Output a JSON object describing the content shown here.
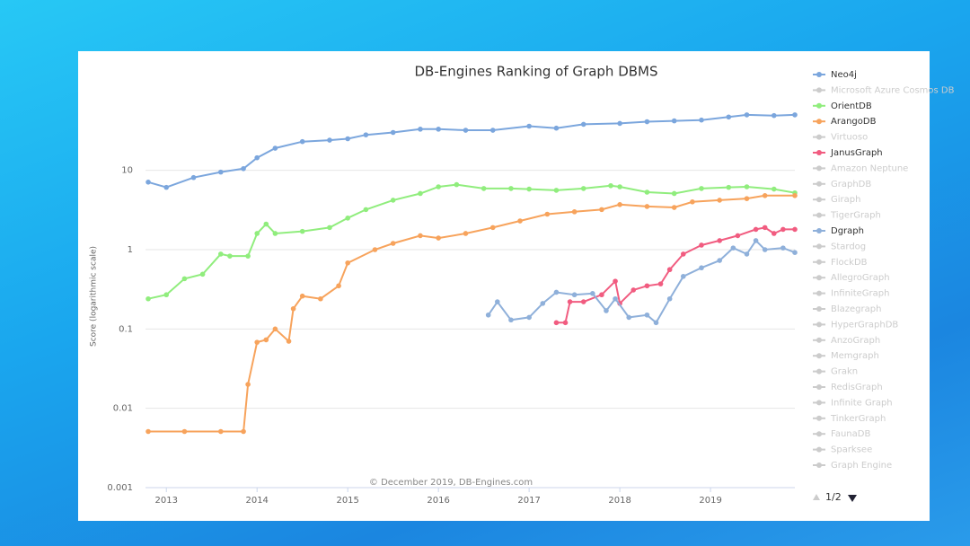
{
  "chart_data": {
    "type": "line",
    "title": "DB-Engines Ranking of Graph DBMS",
    "y_label": "Score (logarithmic scale)",
    "credits": "© December 2019, DB-Engines.com",
    "ylog": true,
    "ylim": [
      0.001,
      70
    ],
    "yticks": [
      0.001,
      0.01,
      0.1,
      1,
      10
    ],
    "xlim": [
      2012.77,
      2019.93
    ],
    "xticks": [
      2013,
      2014,
      2015,
      2016,
      2017,
      2018,
      2019
    ],
    "grid": true,
    "legend_position": "right",
    "legend_page": "1/2",
    "series": [
      {
        "name": "Neo4j",
        "color": "#7ba6dd",
        "x": [
          2012.8,
          2013.0,
          2013.3,
          2013.6,
          2013.85,
          2014.0,
          2014.2,
          2014.5,
          2014.8,
          2015.0,
          2015.2,
          2015.5,
          2015.8,
          2016.0,
          2016.3,
          2016.6,
          2017.0,
          2017.3,
          2017.6,
          2018.0,
          2018.3,
          2018.6,
          2018.9,
          2019.2,
          2019.4,
          2019.7,
          2019.93
        ],
        "values": [
          7.1,
          6.1,
          8.1,
          9.5,
          10.5,
          14.4,
          19,
          23,
          24,
          25,
          28,
          30,
          33,
          33,
          32,
          32,
          36,
          34,
          38,
          39,
          41,
          42,
          43,
          47,
          50,
          49,
          50
        ]
      },
      {
        "name": "OrientDB",
        "color": "#90ed7d",
        "x": [
          2012.8,
          2013.0,
          2013.2,
          2013.4,
          2013.6,
          2013.7,
          2013.9,
          2014.0,
          2014.1,
          2014.2,
          2014.5,
          2014.8,
          2015.0,
          2015.2,
          2015.5,
          2015.8,
          2016.0,
          2016.2,
          2016.5,
          2016.8,
          2017.0,
          2017.3,
          2017.6,
          2017.9,
          2018.0,
          2018.3,
          2018.6,
          2018.9,
          2019.2,
          2019.4,
          2019.7,
          2019.93
        ],
        "values": [
          0.24,
          0.27,
          0.43,
          0.49,
          0.88,
          0.83,
          0.83,
          1.6,
          2.1,
          1.6,
          1.7,
          1.9,
          2.5,
          3.2,
          4.2,
          5.1,
          6.2,
          6.6,
          5.9,
          5.9,
          5.8,
          5.6,
          5.9,
          6.4,
          6.2,
          5.3,
          5.1,
          5.9,
          6.1,
          6.2,
          5.8,
          5.2
        ]
      },
      {
        "name": "ArangoDB",
        "color": "#f7a35c",
        "x": [
          2012.8,
          2013.2,
          2013.6,
          2013.85,
          2013.9,
          2014.0,
          2014.1,
          2014.2,
          2014.35,
          2014.4,
          2014.5,
          2014.7,
          2014.9,
          2015.0,
          2015.3,
          2015.5,
          2015.8,
          2016.0,
          2016.3,
          2016.6,
          2016.9,
          2017.2,
          2017.5,
          2017.8,
          2018.0,
          2018.3,
          2018.6,
          2018.8,
          2019.1,
          2019.4,
          2019.6,
          2019.93
        ],
        "values": [
          0.0051,
          0.0051,
          0.0051,
          0.0051,
          0.02,
          0.068,
          0.073,
          0.1,
          0.07,
          0.18,
          0.26,
          0.24,
          0.35,
          0.68,
          1.0,
          1.2,
          1.5,
          1.4,
          1.6,
          1.9,
          2.3,
          2.8,
          3.0,
          3.2,
          3.7,
          3.5,
          3.4,
          4.0,
          4.2,
          4.4,
          4.8,
          4.8
        ]
      },
      {
        "name": "JanusGraph",
        "color": "#f15c80",
        "x": [
          2017.3,
          2017.4,
          2017.45,
          2017.6,
          2017.8,
          2017.95,
          2018.0,
          2018.15,
          2018.3,
          2018.45,
          2018.55,
          2018.7,
          2018.9,
          2019.1,
          2019.3,
          2019.5,
          2019.6,
          2019.7,
          2019.8,
          2019.93
        ],
        "values": [
          0.12,
          0.12,
          0.22,
          0.22,
          0.27,
          0.4,
          0.21,
          0.31,
          0.35,
          0.37,
          0.56,
          0.88,
          1.14,
          1.3,
          1.5,
          1.8,
          1.9,
          1.6,
          1.8,
          1.8
        ]
      },
      {
        "name": "Dgraph",
        "color": "#8fb0da",
        "x": [
          2016.55,
          2016.65,
          2016.8,
          2017.0,
          2017.15,
          2017.3,
          2017.5,
          2017.7,
          2017.85,
          2017.95,
          2018.1,
          2018.3,
          2018.4,
          2018.55,
          2018.7,
          2018.9,
          2019.1,
          2019.25,
          2019.4,
          2019.5,
          2019.6,
          2019.8,
          2019.93
        ],
        "values": [
          0.15,
          0.22,
          0.13,
          0.14,
          0.21,
          0.29,
          0.27,
          0.28,
          0.17,
          0.24,
          0.14,
          0.15,
          0.12,
          0.24,
          0.46,
          0.59,
          0.73,
          1.05,
          0.88,
          1.3,
          1.0,
          1.05,
          0.92
        ]
      }
    ],
    "hidden_series": [
      "Microsoft Azure Cosmos DB",
      "Virtuoso",
      "Amazon Neptune",
      "GraphDB",
      "Giraph",
      "TigerGraph",
      "Stardog",
      "FlockDB",
      "AllegroGraph",
      "InfiniteGraph",
      "Blazegraph",
      "HyperGraphDB",
      "AnzoGraph",
      "Memgraph",
      "Grakn",
      "RedisGraph",
      "Infinite Graph",
      "TinkerGraph",
      "FaunaDB",
      "Sparksee",
      "Graph Engine"
    ]
  }
}
